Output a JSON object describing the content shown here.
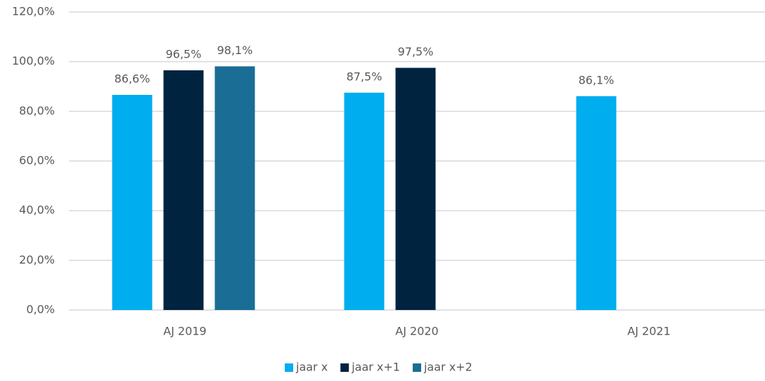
{
  "chart_data": {
    "type": "bar",
    "categories": [
      "AJ 2019",
      "AJ 2020",
      "AJ 2021"
    ],
    "series": [
      {
        "name": "jaar x",
        "color": "#00adef",
        "values": [
          86.6,
          87.5,
          86.1
        ],
        "value_labels": [
          "86,6%",
          "87,5%",
          "86,1%"
        ]
      },
      {
        "name": "jaar x+1",
        "color": "#002340",
        "values": [
          96.5,
          97.5,
          null
        ],
        "value_labels": [
          "96,5%",
          "97,5%",
          null
        ]
      },
      {
        "name": "jaar x+2",
        "color": "#1a6d94",
        "values": [
          98.1,
          null,
          null
        ],
        "value_labels": [
          "98,1%",
          null,
          null
        ]
      }
    ],
    "ylim": [
      0,
      120
    ],
    "yticks": [
      {
        "value": 0,
        "label": "0,0%"
      },
      {
        "value": 20,
        "label": "20,0%"
      },
      {
        "value": 40,
        "label": "40,0%"
      },
      {
        "value": 60,
        "label": "60,0%"
      },
      {
        "value": 80,
        "label": "80,0%"
      },
      {
        "value": 100,
        "label": "100,0%"
      },
      {
        "value": 120,
        "label": "120,0%"
      }
    ],
    "grid": true,
    "legend": "bottom"
  }
}
